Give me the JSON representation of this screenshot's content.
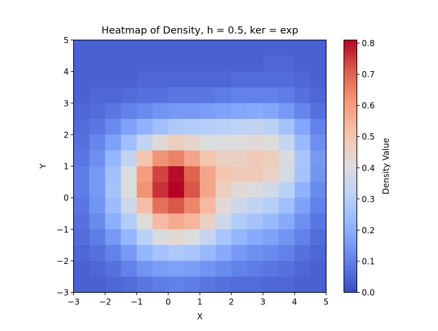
{
  "chart_data": {
    "type": "heatmap",
    "title": "Heatmap of Density, h = 0.5, ker = exp",
    "xlabel": "X",
    "ylabel": "Y",
    "xlim": [
      -3,
      5
    ],
    "ylim": [
      -3,
      5
    ],
    "x_ticks": [
      -3,
      -2,
      -1,
      0,
      1,
      2,
      3,
      4,
      5
    ],
    "x_tick_labels": [
      "−3",
      "−2",
      "−1",
      "0",
      "1",
      "2",
      "3",
      "4",
      "5"
    ],
    "y_ticks": [
      -3,
      -2,
      -1,
      0,
      1,
      2,
      3,
      4,
      5
    ],
    "y_tick_labels": [
      "−3",
      "−2",
      "−1",
      "0",
      "1",
      "2",
      "3",
      "4",
      "5"
    ],
    "grid": false,
    "colormap": "coolwarm",
    "colorbar": {
      "label": "Density Value",
      "min": 0.0,
      "max": 0.81,
      "ticks": [
        0.0,
        0.1,
        0.2,
        0.3,
        0.4,
        0.5,
        0.6,
        0.7,
        0.8
      ],
      "tick_labels": [
        "0.0",
        "0.1",
        "0.2",
        "0.3",
        "0.4",
        "0.5",
        "0.6",
        "0.7",
        "0.8"
      ]
    },
    "x_edges": [
      -3,
      5
    ],
    "y_edges": [
      -3,
      5
    ],
    "rows_top_to_bottom": [
      [
        0.04,
        0.04,
        0.04,
        0.04,
        0.04,
        0.04,
        0.04,
        0.04,
        0.04,
        0.04,
        0.04,
        0.04,
        0.04,
        0.04,
        0.04,
        0.04
      ],
      [
        0.04,
        0.04,
        0.04,
        0.04,
        0.04,
        0.04,
        0.04,
        0.04,
        0.04,
        0.04,
        0.04,
        0.04,
        0.05,
        0.05,
        0.04,
        0.04
      ],
      [
        0.04,
        0.04,
        0.04,
        0.04,
        0.05,
        0.05,
        0.05,
        0.05,
        0.05,
        0.05,
        0.06,
        0.06,
        0.06,
        0.06,
        0.05,
        0.04
      ],
      [
        0.04,
        0.05,
        0.05,
        0.06,
        0.07,
        0.07,
        0.08,
        0.08,
        0.08,
        0.09,
        0.1,
        0.1,
        0.1,
        0.09,
        0.07,
        0.05
      ],
      [
        0.05,
        0.06,
        0.08,
        0.1,
        0.12,
        0.14,
        0.15,
        0.15,
        0.16,
        0.17,
        0.18,
        0.19,
        0.18,
        0.15,
        0.11,
        0.07
      ],
      [
        0.06,
        0.08,
        0.12,
        0.17,
        0.21,
        0.25,
        0.28,
        0.29,
        0.3,
        0.31,
        0.32,
        0.33,
        0.31,
        0.26,
        0.18,
        0.1
      ],
      [
        0.07,
        0.11,
        0.17,
        0.25,
        0.33,
        0.42,
        0.47,
        0.44,
        0.4,
        0.4,
        0.41,
        0.42,
        0.41,
        0.34,
        0.23,
        0.13
      ],
      [
        0.08,
        0.13,
        0.22,
        0.33,
        0.5,
        0.62,
        0.65,
        0.58,
        0.5,
        0.46,
        0.46,
        0.48,
        0.47,
        0.39,
        0.27,
        0.15
      ],
      [
        0.09,
        0.15,
        0.25,
        0.4,
        0.6,
        0.74,
        0.8,
        0.7,
        0.58,
        0.5,
        0.48,
        0.48,
        0.45,
        0.38,
        0.26,
        0.14
      ],
      [
        0.09,
        0.15,
        0.26,
        0.4,
        0.62,
        0.76,
        0.81,
        0.72,
        0.58,
        0.47,
        0.42,
        0.4,
        0.37,
        0.31,
        0.21,
        0.12
      ],
      [
        0.08,
        0.14,
        0.24,
        0.36,
        0.52,
        0.68,
        0.72,
        0.64,
        0.53,
        0.42,
        0.36,
        0.33,
        0.3,
        0.25,
        0.17,
        0.1
      ],
      [
        0.07,
        0.12,
        0.2,
        0.29,
        0.41,
        0.53,
        0.57,
        0.54,
        0.46,
        0.36,
        0.29,
        0.26,
        0.23,
        0.19,
        0.13,
        0.08
      ],
      [
        0.06,
        0.09,
        0.15,
        0.22,
        0.31,
        0.39,
        0.43,
        0.4,
        0.34,
        0.27,
        0.22,
        0.19,
        0.17,
        0.14,
        0.1,
        0.06
      ],
      [
        0.05,
        0.07,
        0.1,
        0.15,
        0.22,
        0.26,
        0.28,
        0.27,
        0.23,
        0.19,
        0.15,
        0.13,
        0.12,
        0.1,
        0.07,
        0.05
      ],
      [
        0.04,
        0.05,
        0.07,
        0.1,
        0.14,
        0.16,
        0.17,
        0.16,
        0.14,
        0.12,
        0.1,
        0.09,
        0.08,
        0.07,
        0.05,
        0.04
      ],
      [
        0.04,
        0.04,
        0.05,
        0.06,
        0.08,
        0.09,
        0.1,
        0.09,
        0.08,
        0.07,
        0.06,
        0.06,
        0.05,
        0.05,
        0.04,
        0.04
      ]
    ]
  }
}
